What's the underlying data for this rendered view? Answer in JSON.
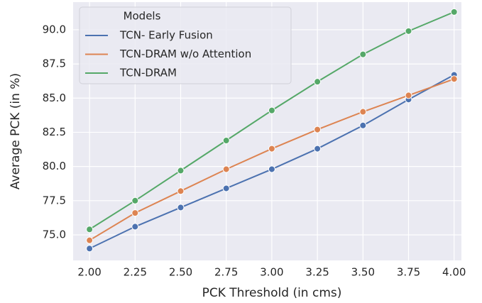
{
  "chart_data": {
    "type": "line",
    "xlabel": "PCK Threshold (in cms)",
    "ylabel": "Average PCK (in %)",
    "legend_title": "Models",
    "legend": "upper left",
    "grid": true,
    "x": [
      2.0,
      2.25,
      2.5,
      2.75,
      3.0,
      3.25,
      3.5,
      3.75,
      4.0
    ],
    "series": [
      {
        "name": "TCN- Early Fusion",
        "color": "#4c72b0",
        "values": [
          74.0,
          75.6,
          77.0,
          78.4,
          79.8,
          81.3,
          83.0,
          84.9,
          86.7
        ]
      },
      {
        "name": "TCN-DRAM w/o Attention",
        "color": "#dd8452",
        "values": [
          74.6,
          76.6,
          78.2,
          79.8,
          81.3,
          82.7,
          84.0,
          85.2,
          86.4
        ]
      },
      {
        "name": "TCN-DRAM",
        "color": "#55a868",
        "values": [
          75.4,
          77.5,
          79.7,
          81.9,
          84.1,
          86.2,
          88.2,
          89.9,
          91.3
        ]
      }
    ],
    "xlim": [
      1.91,
      4.04
    ],
    "xticks": [
      {
        "value": 2.0,
        "label": "2.00"
      },
      {
        "value": 2.25,
        "label": "2.25"
      },
      {
        "value": 2.5,
        "label": "2.50"
      },
      {
        "value": 2.75,
        "label": "2.75"
      },
      {
        "value": 3.0,
        "label": "3.00"
      },
      {
        "value": 3.25,
        "label": "3.25"
      },
      {
        "value": 3.5,
        "label": "3.50"
      },
      {
        "value": 3.75,
        "label": "3.75"
      },
      {
        "value": 4.0,
        "label": "4.00"
      }
    ],
    "ylim": [
      73.13,
      92.02
    ],
    "yticks": [
      {
        "value": 75,
        "label": "75.0"
      },
      {
        "value": 77.5,
        "label": "77.5"
      },
      {
        "value": 80,
        "label": "80.0"
      },
      {
        "value": 82.5,
        "label": "82.5"
      },
      {
        "value": 85,
        "label": "85.0"
      },
      {
        "value": 87.5,
        "label": "87.5"
      },
      {
        "value": 90,
        "label": "90.0"
      }
    ]
  }
}
